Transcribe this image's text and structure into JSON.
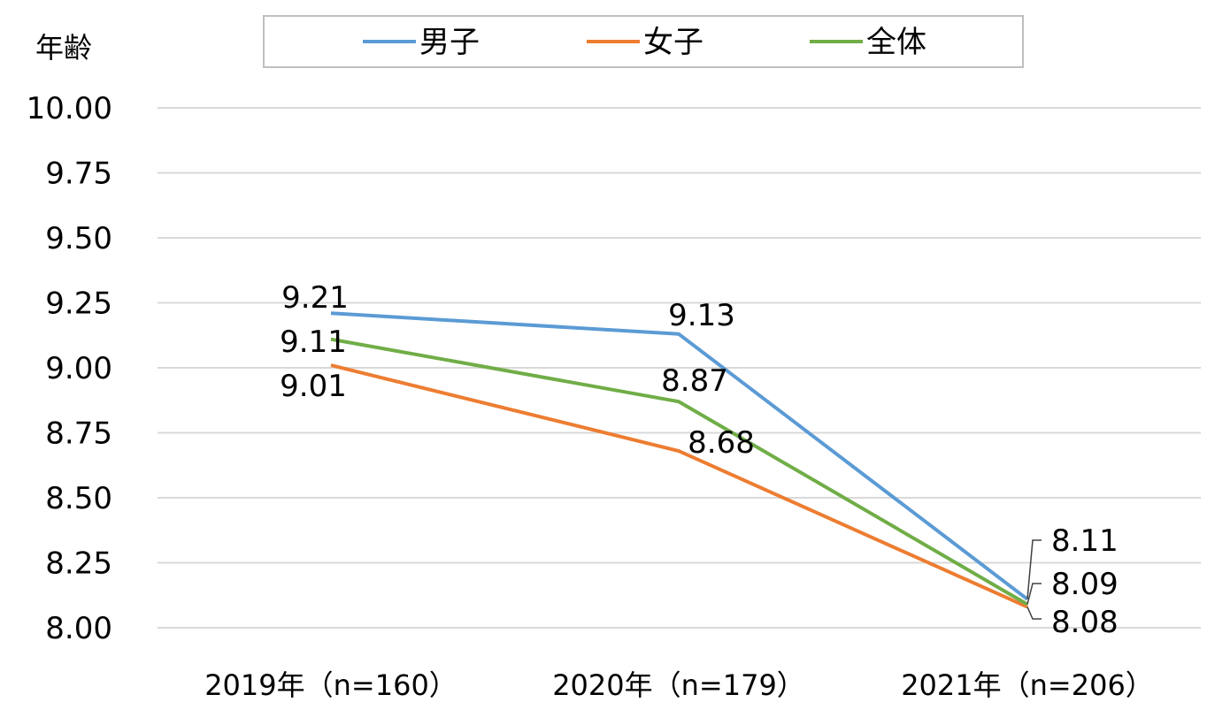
{
  "chart_data": {
    "type": "line",
    "ylabel": "年齢",
    "categories": [
      "2019年（n=160）",
      "2020年（n=179）",
      "2021年（n=206）"
    ],
    "ylim": [
      8.0,
      10.0
    ],
    "yticks": [
      "10.00",
      "9.75",
      "9.50",
      "9.25",
      "9.00",
      "8.75",
      "8.50",
      "8.25",
      "8.00"
    ],
    "grid": true,
    "legend_position": "top",
    "series": [
      {
        "name": "男子",
        "color": "#5b9bd5",
        "values": [
          9.21,
          9.13,
          8.11
        ],
        "labels": [
          "9.21",
          "9.13",
          "8.11"
        ]
      },
      {
        "name": "女子",
        "color": "#ed7d31",
        "values": [
          9.01,
          8.68,
          8.08
        ],
        "labels": [
          "9.01",
          "8.68",
          "8.08"
        ]
      },
      {
        "name": "全体",
        "color": "#70ad47",
        "values": [
          9.11,
          8.87,
          8.09
        ],
        "labels": [
          "9.11",
          "8.87",
          "8.09"
        ]
      }
    ]
  }
}
